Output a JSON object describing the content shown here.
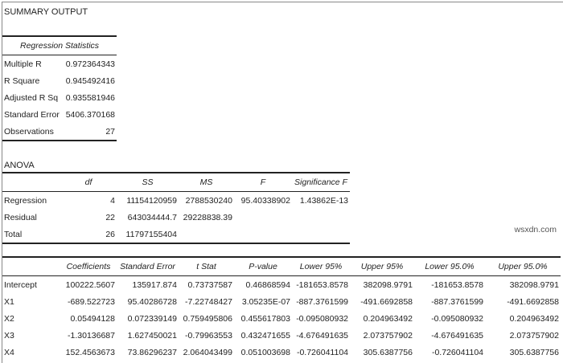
{
  "title": "SUMMARY OUTPUT",
  "regression_statistics": {
    "header": "Regression Statistics",
    "rows": [
      {
        "label": "Multiple R",
        "value": "0.972364343"
      },
      {
        "label": "R Square",
        "value": "0.945492416"
      },
      {
        "label": "Adjusted R Sq",
        "value": "0.935581946"
      },
      {
        "label": "Standard Error",
        "value": "5406.370168"
      },
      {
        "label": "Observations",
        "value": "27"
      }
    ]
  },
  "anova": {
    "title": "ANOVA",
    "columns": [
      "",
      "df",
      "SS",
      "MS",
      "F",
      "Significance F"
    ],
    "rows": [
      [
        "Regression",
        "4",
        "11154120959",
        "2788530240",
        "95.40338902",
        "1.43862E-13"
      ],
      [
        "Residual",
        "22",
        "643034444.7",
        "29228838.39",
        "",
        ""
      ],
      [
        "Total",
        "26",
        "11797155404",
        "",
        "",
        ""
      ]
    ]
  },
  "coefficients": {
    "columns": [
      "",
      "Coefficients",
      "Standard Error",
      "t Stat",
      "P-value",
      "Lower 95%",
      "Upper 95%",
      "Lower 95.0%",
      "Upper 95.0%"
    ],
    "rows": [
      [
        "Intercept",
        "100222.5607",
        "135917.874",
        "0.73737587",
        "0.46868594",
        "-181653.8578",
        "382098.9791",
        "-181653.8578",
        "382098.9791"
      ],
      [
        "X1",
        "-689.522723",
        "95.40286728",
        "-7.22748427",
        "3.05235E-07",
        "-887.3761599",
        "-491.6692858",
        "-887.3761599",
        "-491.6692858"
      ],
      [
        "X2",
        "0.05494128",
        "0.072339149",
        "0.759495806",
        "0.455617803",
        "-0.095080932",
        "0.204963492",
        "-0.095080932",
        "0.204963492"
      ],
      [
        "X3",
        "-1.30136687",
        "1.627450021",
        "-0.79963553",
        "0.432471655",
        "-4.676491635",
        "2.073757902",
        "-4.676491635",
        "2.073757902"
      ],
      [
        "X4",
        "152.4563673",
        "73.86296237",
        "2.064043499",
        "0.051003698",
        "-0.726041104",
        "305.6387756",
        "-0.726041104",
        "305.6387756"
      ]
    ]
  },
  "watermark": "wsxdn.com"
}
